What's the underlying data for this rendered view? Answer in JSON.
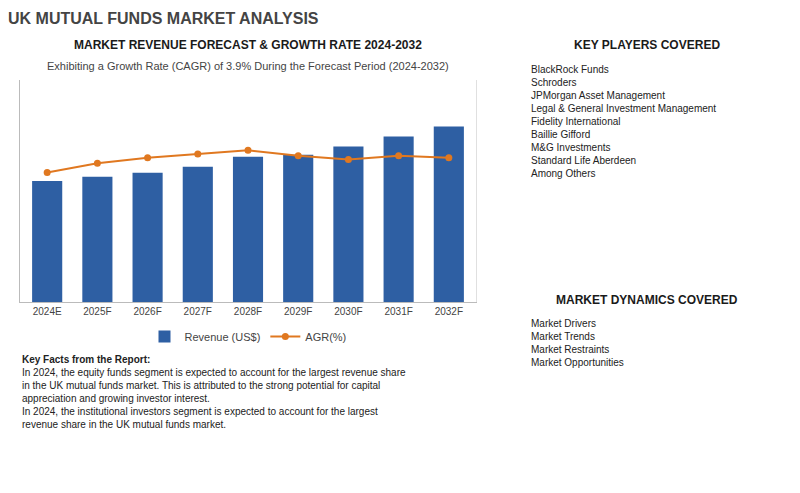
{
  "chart_data": {
    "type": "bar",
    "title": "UK MUTUAL FUNDS MARKET ANALYSIS",
    "subtitle": "Exhibiting a Growth Rate (CAGR) of 3.9% During the Forecast Period (2024-2032)",
    "annotations": [
      {
        "title": "MARKET REVENUE FORECAST & GROWTH RATE 2024-2032"
      },
      {
        "title": "Key Facts from the Report:",
        "items": [
          "In 2024, the equity funds segment is expected to account for the largest revenue share in the UK mutual funds market. This is attributed to the strong potential for capital appreciation and growing investor interest.",
          "In 2024, the institutional investors segment is expected to account for the largest revenue share in the UK mutual funds market."
        ]
      },
      {
        "title": "KEY PLAYERS COVERED",
        "items": [
          "BlackRock Funds",
          "Schroders",
          "JPMorgan Asset Management",
          "Legal & General Investment Management",
          "Fidelity International",
          "Baillie Gifford",
          "M&G Investments",
          "Standard Life Aberdeen",
          "Among Others"
        ]
      },
      {
        "title": "MARKET DYNAMICS COVERED",
        "items": [
          "Market Drivers",
          "Market Trends",
          "Market Restraints",
          "Market Opportunities"
        ]
      }
    ],
    "categories": [
      "2024E",
      "2025F",
      "2026F",
      "2027F",
      "2028F",
      "2029F",
      "2030F",
      "2031F",
      "2032F"
    ],
    "series": [
      {
        "name": "Revenue (US$)",
        "type": "bar",
        "color": "#2e5fa3",
        "values": [
          3.0,
          3.1,
          3.2,
          3.35,
          3.6,
          3.65,
          3.85,
          4.1,
          4.35
        ]
      },
      {
        "name": "AGR(%)",
        "type": "line",
        "color": "#e07820",
        "marker": "circle",
        "axis": "y2",
        "values": [
          3.5,
          3.75,
          3.9,
          4.0,
          4.1,
          3.95,
          3.85,
          3.95,
          3.9
        ]
      }
    ],
    "ylim": [
      0,
      5.5
    ],
    "y2lim": [
      0,
      6
    ],
    "tick_labels": "x",
    "grid": false,
    "legend": "bottom"
  }
}
